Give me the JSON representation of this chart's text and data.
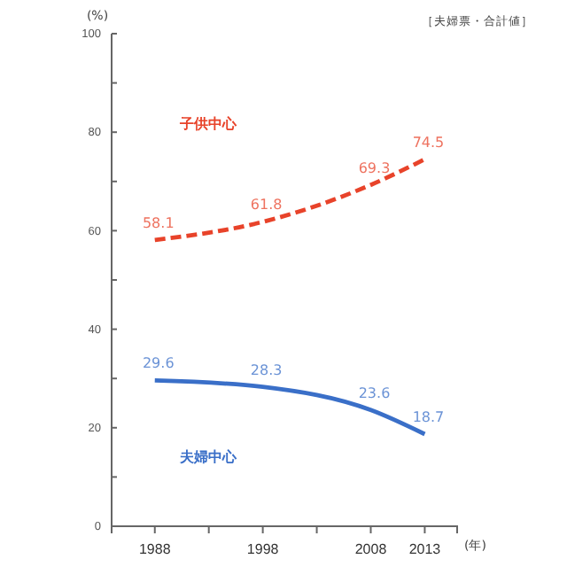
{
  "chart_data": {
    "type": "line",
    "title": "［夫婦票・合計値］",
    "ylabel": "(%)",
    "xlabel": "(年)",
    "x": [
      1988,
      1998,
      2008,
      2013
    ],
    "xlim": [
      1984,
      2016
    ],
    "xticks": [
      1988,
      {
        "value": 1993,
        "label": null
      },
      1998,
      {
        "value": 2003,
        "label": null
      },
      2008,
      2013
    ],
    "ylim": [
      0,
      100
    ],
    "yticks": [
      0,
      {
        "value": 10,
        "label": null
      },
      20,
      {
        "value": 30,
        "label": null
      },
      40,
      {
        "value": 50,
        "label": null
      },
      60,
      {
        "value": 70,
        "label": null
      },
      80,
      {
        "value": 90,
        "label": null
      },
      100
    ],
    "series": [
      {
        "name": "子供中心",
        "color": "#e8432a",
        "line_style": "dashed",
        "values": [
          58.1,
          61.8,
          69.3,
          74.5
        ]
      },
      {
        "name": "夫婦中心",
        "color": "#3a6fc8",
        "line_style": "solid",
        "values": [
          29.6,
          28.3,
          23.6,
          18.7
        ]
      }
    ],
    "data_labels": true,
    "grid": false,
    "marker": "none"
  }
}
